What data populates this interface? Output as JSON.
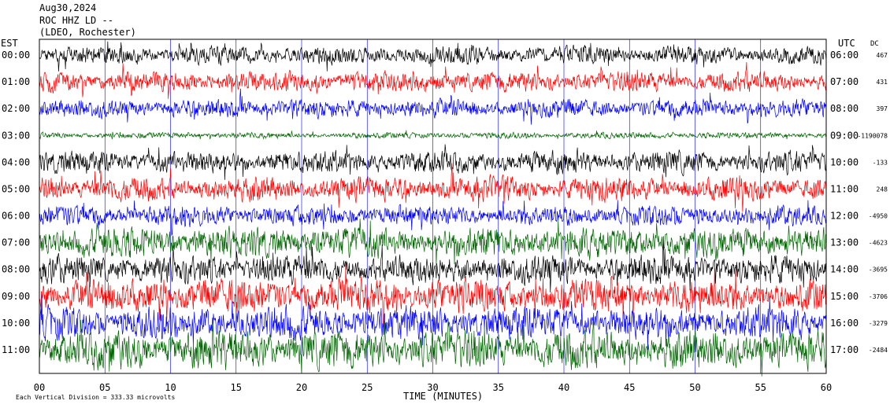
{
  "header": {
    "date": "Aug30,2024",
    "station": "ROC HHZ LD --",
    "network": "(LDEO, Rochester)"
  },
  "left_axis_title": "EST",
  "right_axis_title": "UTC",
  "dc_title": "DC",
  "footer": {
    "scale_note": "Each Vertical Division = 333.33 microvolts",
    "xlabel": "TIME (MINUTES)"
  },
  "colors": {
    "black": "#000000",
    "red": "#ff0000",
    "blue": "#0000ff",
    "green": "#006400"
  },
  "chart_data": {
    "type": "line",
    "title": "ROC HHZ LD --",
    "xlabel": "TIME (MINUTES)",
    "xlim": [
      0,
      60
    ],
    "x_ticks": [
      "00",
      "05",
      "10",
      "15",
      "20",
      "25",
      "30",
      "35",
      "40",
      "45",
      "50",
      "55",
      "60"
    ],
    "grid": true,
    "rows": [
      {
        "est": "00:00",
        "utc": "06:00",
        "dc": "467",
        "color": "black",
        "amplitude": 0.45
      },
      {
        "est": "01:00",
        "utc": "07:00",
        "dc": "431",
        "color": "red",
        "amplitude": 0.5
      },
      {
        "est": "02:00",
        "utc": "08:00",
        "dc": "397",
        "color": "blue",
        "amplitude": 0.45
      },
      {
        "est": "03:00",
        "utc": "09:00",
        "dc": "-1190078",
        "color": "green",
        "amplitude": 0.15
      },
      {
        "est": "04:00",
        "utc": "10:00",
        "dc": "-133",
        "color": "black",
        "amplitude": 0.55
      },
      {
        "est": "05:00",
        "utc": "11:00",
        "dc": "248",
        "color": "red",
        "amplitude": 0.6
      },
      {
        "est": "06:00",
        "utc": "12:00",
        "dc": "-4950",
        "color": "blue",
        "amplitude": 0.5
      },
      {
        "est": "07:00",
        "utc": "13:00",
        "dc": "-4623",
        "color": "green",
        "amplitude": 0.75
      },
      {
        "est": "08:00",
        "utc": "14:00",
        "dc": "-3695",
        "color": "black",
        "amplitude": 0.7
      },
      {
        "est": "09:00",
        "utc": "15:00",
        "dc": "-3706",
        "color": "red",
        "amplitude": 0.85
      },
      {
        "est": "10:00",
        "utc": "16:00",
        "dc": "-3279",
        "color": "blue",
        "amplitude": 0.8
      },
      {
        "est": "11:00",
        "utc": "17:00",
        "dc": "-2484",
        "color": "green",
        "amplitude": 0.95
      }
    ]
  }
}
